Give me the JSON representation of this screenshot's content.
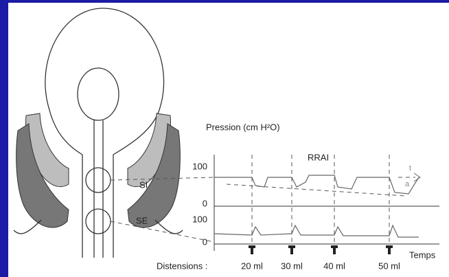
{
  "labels": {
    "pressure_axis": "Pression (cm H²O)",
    "reflex": "RRAI",
    "internal_sphincter": "SI",
    "external_sphincter": "SE",
    "t_mark": "t",
    "a_mark": "a",
    "time_axis": "Temps",
    "distensions_title": "Distensions :"
  },
  "upper_axis": {
    "top": "100",
    "bottom": "0"
  },
  "lower_axis": {
    "top": "100",
    "bottom": "0"
  },
  "distensions": [
    "20 ml",
    "30 ml",
    "40 ml",
    "50 ml"
  ]
}
